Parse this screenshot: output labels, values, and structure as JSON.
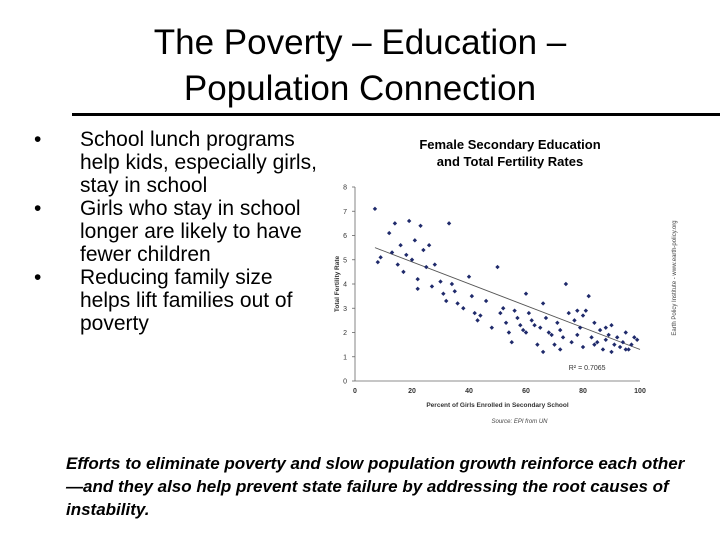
{
  "slide": {
    "title_line1": "The Poverty – Education –",
    "title_line2": "Population Connection",
    "bullets": [
      "School lunch programs help kids, especially girls, stay in school",
      "Girls who stay in school longer are likely to have fewer children",
      "Reducing family size helps lift families out of poverty"
    ],
    "footer": "Efforts to eliminate poverty and slow population growth reinforce each other—and they also help prevent state failure by addressing the root causes of instability."
  },
  "chart_data": {
    "type": "scatter",
    "title_line1": "Female Secondary Education",
    "title_line2": "and Total Fertility Rates",
    "xlabel": "Percent of Girls Enrolled in Secondary School",
    "ylabel": "Total Fertility Rate",
    "xlim": [
      0,
      100
    ],
    "ylim": [
      0,
      8
    ],
    "xticks": [
      0,
      20,
      40,
      60,
      80,
      100
    ],
    "yticks": [
      0,
      1,
      2,
      3,
      4,
      5,
      6,
      7,
      8
    ],
    "annotation": "R² = 0.7065",
    "source": "Source: EPI from UN",
    "side_label": "Earth Policy Institute - www.earth-policy.org",
    "point_color": "#1f2a6b",
    "trendline": {
      "x": [
        7,
        100
      ],
      "y": [
        5.5,
        1.3
      ]
    },
    "points": [
      [
        7,
        7.1
      ],
      [
        8,
        4.9
      ],
      [
        9,
        5.1
      ],
      [
        12,
        6.1
      ],
      [
        13,
        5.3
      ],
      [
        14,
        6.5
      ],
      [
        15,
        4.8
      ],
      [
        16,
        5.6
      ],
      [
        17,
        4.5
      ],
      [
        18,
        5.2
      ],
      [
        19,
        6.6
      ],
      [
        20,
        5.0
      ],
      [
        21,
        5.8
      ],
      [
        22,
        4.2
      ],
      [
        22,
        3.8
      ],
      [
        23,
        6.4
      ],
      [
        24,
        5.4
      ],
      [
        25,
        4.7
      ],
      [
        26,
        5.6
      ],
      [
        27,
        3.9
      ],
      [
        28,
        4.8
      ],
      [
        30,
        4.1
      ],
      [
        31,
        3.6
      ],
      [
        32,
        3.3
      ],
      [
        33,
        6.5
      ],
      [
        34,
        4.0
      ],
      [
        35,
        3.7
      ],
      [
        36,
        3.2
      ],
      [
        38,
        3.0
      ],
      [
        40,
        4.3
      ],
      [
        41,
        3.5
      ],
      [
        42,
        2.8
      ],
      [
        43,
        2.5
      ],
      [
        44,
        2.7
      ],
      [
        46,
        3.3
      ],
      [
        48,
        2.2
      ],
      [
        50,
        4.7
      ],
      [
        51,
        2.8
      ],
      [
        52,
        3.0
      ],
      [
        53,
        2.4
      ],
      [
        54,
        2.0
      ],
      [
        55,
        1.6
      ],
      [
        56,
        2.9
      ],
      [
        57,
        2.6
      ],
      [
        58,
        2.3
      ],
      [
        59,
        2.1
      ],
      [
        60,
        3.6
      ],
      [
        61,
        2.8
      ],
      [
        62,
        2.5
      ],
      [
        63,
        2.3
      ],
      [
        64,
        1.5
      ],
      [
        65,
        2.2
      ],
      [
        66,
        3.2
      ],
      [
        67,
        2.6
      ],
      [
        68,
        2.0
      ],
      [
        69,
        1.9
      ],
      [
        70,
        1.5
      ],
      [
        71,
        2.4
      ],
      [
        72,
        2.1
      ],
      [
        73,
        1.8
      ],
      [
        74,
        4.0
      ],
      [
        75,
        2.8
      ],
      [
        76,
        1.6
      ],
      [
        77,
        2.5
      ],
      [
        78,
        1.9
      ],
      [
        79,
        2.2
      ],
      [
        80,
        1.4
      ],
      [
        81,
        2.9
      ],
      [
        82,
        3.5
      ],
      [
        83,
        1.8
      ],
      [
        84,
        2.4
      ],
      [
        85,
        1.6
      ],
      [
        86,
        2.1
      ],
      [
        87,
        1.3
      ],
      [
        88,
        1.7
      ],
      [
        89,
        1.9
      ],
      [
        90,
        2.3
      ],
      [
        91,
        1.5
      ],
      [
        92,
        1.8
      ],
      [
        93,
        1.4
      ],
      [
        94,
        1.6
      ],
      [
        95,
        2.0
      ],
      [
        96,
        1.3
      ],
      [
        97,
        1.5
      ],
      [
        98,
        1.8
      ],
      [
        99,
        1.7
      ],
      [
        66,
        1.2
      ],
      [
        78,
        2.9
      ],
      [
        84,
        1.5
      ],
      [
        90,
        1.2
      ],
      [
        95,
        1.3
      ],
      [
        72,
        1.3
      ],
      [
        60,
        2.0
      ],
      [
        88,
        2.2
      ],
      [
        80,
        2.7
      ]
    ]
  }
}
